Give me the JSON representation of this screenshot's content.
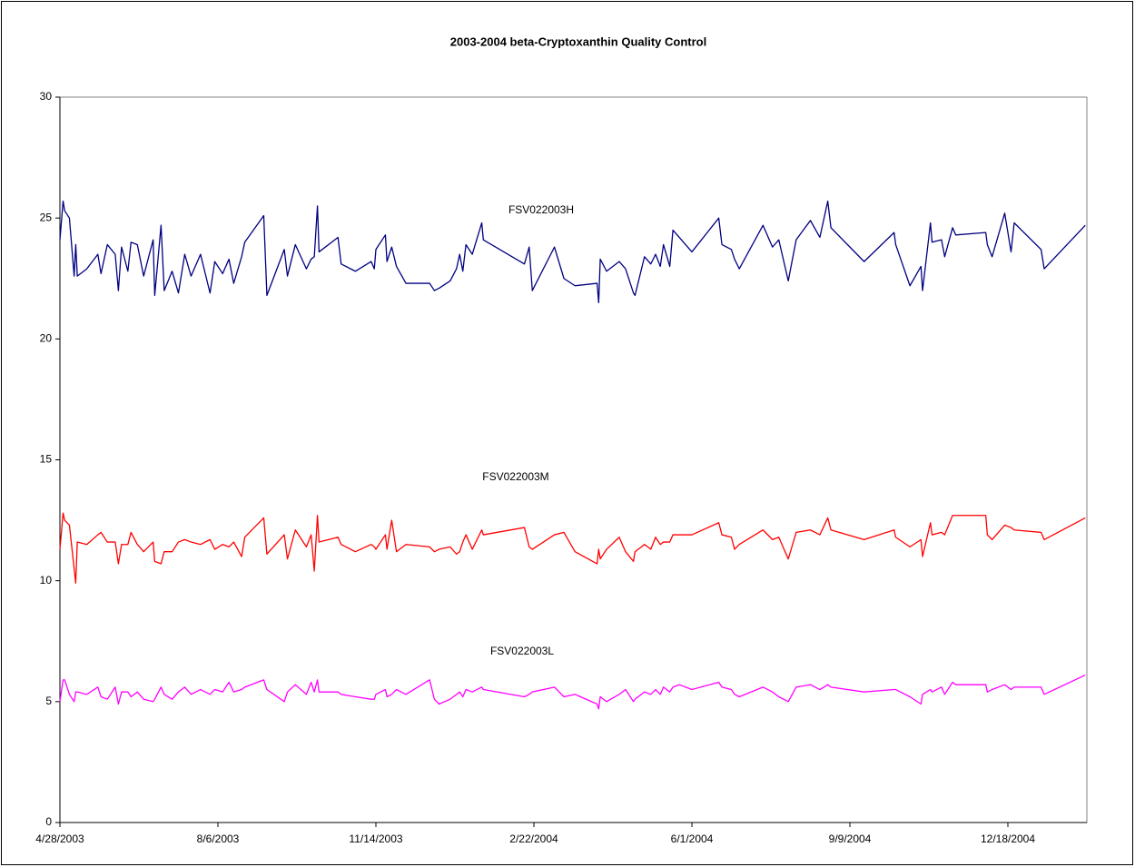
{
  "chart_data": {
    "type": "line",
    "title": "2003-2004 beta-Cryptoxanthin Quality Control",
    "x": [
      "4/28/2003",
      "4/30/2003",
      "5/1/2003",
      "5/4/2003",
      "5/7/2003",
      "5/8/2003",
      "5/9/2003",
      "5/15/2003",
      "5/22/2003",
      "5/24/2003",
      "5/28/2003",
      "6/2/2003",
      "6/4/2003",
      "6/6/2003",
      "6/10/2003",
      "6/12/2003",
      "6/16/2003",
      "6/20/2003",
      "6/26/2003",
      "6/27/2003",
      "7/1/2003",
      "7/3/2003",
      "7/8/2003",
      "7/12/2003",
      "7/16/2003",
      "7/20/2003",
      "7/26/2003",
      "8/1/2003",
      "8/4/2003",
      "8/9/2003",
      "8/13/2003",
      "8/16/2003",
      "8/21/2003",
      "8/23/2003",
      "9/4/2003",
      "9/6/2003",
      "9/17/2003",
      "9/19/2003",
      "9/24/2003",
      "10/1/2003",
      "10/4/2003",
      "10/6/2003",
      "10/8/2003",
      "10/9/2003",
      "10/21/2003",
      "10/23/2003",
      "11/1/2003",
      "11/11/2003",
      "11/13/2003",
      "11/14/2003",
      "11/20/2003",
      "11/21/2003",
      "11/24/2003",
      "11/27/2003",
      "12/3/2003",
      "12/18/2003",
      "12/21/2003",
      "12/24/2003",
      "12/31/2003",
      "1/4/2004",
      "1/6/2004",
      "1/8/2004",
      "1/10/2004",
      "1/14/2004",
      "1/20/2004",
      "1/21/2004",
      "2/16/2004",
      "2/19/2004",
      "2/21/2004",
      "3/6/2004",
      "3/12/2004",
      "3/19/2004",
      "4/2/2004",
      "4/3/2004",
      "4/4/2004",
      "4/8/2004",
      "4/16/2004",
      "4/20/2004",
      "4/25/2004",
      "4/26/2004",
      "5/2/2004",
      "5/6/2004",
      "5/9/2004",
      "5/12/2004",
      "5/14/2004",
      "5/18/2004",
      "5/20/2004",
      "5/24/2004",
      "6/1/2004",
      "6/18/2004",
      "6/20/2004",
      "6/26/2004",
      "6/28/2004",
      "7/1/2004",
      "7/16/2004",
      "7/22/2004",
      "7/26/2004",
      "8/1/2004",
      "8/6/2004",
      "8/15/2004",
      "8/21/2004",
      "8/26/2004",
      "8/28/2004",
      "9/18/2004",
      "10/7/2004",
      "10/8/2004",
      "10/17/2004",
      "10/24/2004",
      "10/25/2004",
      "10/30/2004",
      "10/31/2004",
      "11/6/2004",
      "11/8/2004",
      "11/13/2004",
      "11/15/2004",
      "12/4/2004",
      "12/5/2004",
      "12/8/2004",
      "12/16/2004",
      "12/20/2004",
      "12/22/2004",
      "1/8/2005",
      "1/10/2005",
      "2/5/2005"
    ],
    "series": [
      {
        "name": "FSV022003H",
        "color": "#000080",
        "values": [
          24.1,
          25.7,
          25.3,
          25.0,
          22.6,
          23.9,
          22.6,
          22.9,
          23.5,
          22.7,
          23.9,
          23.5,
          22.0,
          23.8,
          22.8,
          24.0,
          23.9,
          22.6,
          24.1,
          21.8,
          24.7,
          22.0,
          22.8,
          21.9,
          23.5,
          22.6,
          23.5,
          21.9,
          23.2,
          22.7,
          23.3,
          22.3,
          23.4,
          24.0,
          25.1,
          21.8,
          23.7,
          22.6,
          23.9,
          22.9,
          23.3,
          23.4,
          25.5,
          23.6,
          24.2,
          23.1,
          22.8,
          23.2,
          22.9,
          23.7,
          24.3,
          23.2,
          23.8,
          23.0,
          22.3,
          22.3,
          22.0,
          22.1,
          22.4,
          22.9,
          23.5,
          22.8,
          23.9,
          23.5,
          24.8,
          24.1,
          23.1,
          23.8,
          22.0,
          23.8,
          22.5,
          22.2,
          22.3,
          21.5,
          23.3,
          22.8,
          23.2,
          22.9,
          21.9,
          21.8,
          23.4,
          23.1,
          23.5,
          23.0,
          23.9,
          23.0,
          24.5,
          24.2,
          23.6,
          25.0,
          23.9,
          23.7,
          23.3,
          22.9,
          24.7,
          23.8,
          24.1,
          22.4,
          24.1,
          24.9,
          24.2,
          25.7,
          24.6,
          23.2,
          24.4,
          23.9,
          22.2,
          23.0,
          22.0,
          24.8,
          24.0,
          24.1,
          23.4,
          24.6,
          24.3,
          24.4,
          23.9,
          23.4,
          25.2,
          23.6,
          24.8,
          23.7,
          22.9,
          24.7
        ]
      },
      {
        "name": "FSV022003M",
        "color": "#ff0000",
        "values": [
          11.3,
          12.8,
          12.5,
          12.3,
          10.5,
          9.9,
          11.6,
          11.5,
          11.9,
          12.0,
          11.6,
          11.6,
          10.7,
          11.5,
          11.5,
          12.0,
          11.5,
          11.2,
          11.6,
          10.8,
          10.7,
          11.2,
          11.2,
          11.6,
          11.7,
          11.6,
          11.5,
          11.7,
          11.3,
          11.5,
          11.4,
          11.6,
          11.0,
          11.8,
          12.6,
          11.1,
          11.9,
          10.9,
          12.1,
          11.4,
          11.9,
          10.4,
          12.7,
          11.6,
          11.8,
          11.5,
          11.2,
          11.5,
          11.4,
          11.3,
          11.9,
          11.3,
          12.5,
          11.2,
          11.5,
          11.4,
          11.2,
          11.3,
          11.4,
          11.1,
          11.2,
          11.6,
          11.9,
          11.3,
          12.1,
          11.9,
          12.2,
          11.4,
          11.3,
          11.9,
          12.0,
          11.2,
          10.7,
          11.3,
          10.9,
          11.3,
          11.8,
          11.2,
          10.8,
          11.2,
          11.5,
          11.3,
          11.8,
          11.5,
          11.6,
          11.6,
          11.9,
          11.9,
          11.9,
          12.4,
          11.9,
          11.8,
          11.3,
          11.5,
          12.1,
          11.7,
          11.8,
          10.9,
          12.0,
          12.1,
          11.9,
          12.6,
          12.1,
          11.7,
          12.1,
          11.8,
          11.4,
          11.7,
          11.0,
          12.4,
          11.9,
          12.0,
          11.9,
          12.7,
          12.7,
          12.7,
          11.9,
          11.7,
          12.3,
          12.2,
          12.1,
          12.0,
          11.7,
          12.6
        ]
      },
      {
        "name": "FSV022003L",
        "color": "#ff00ff",
        "values": [
          5.0,
          5.9,
          5.9,
          5.3,
          5.0,
          5.4,
          5.4,
          5.3,
          5.6,
          5.2,
          5.1,
          5.6,
          4.9,
          5.4,
          5.4,
          5.2,
          5.4,
          5.1,
          5.0,
          5.1,
          5.6,
          5.3,
          5.1,
          5.4,
          5.6,
          5.3,
          5.5,
          5.3,
          5.5,
          5.4,
          5.8,
          5.4,
          5.5,
          5.6,
          5.9,
          5.5,
          5.0,
          5.4,
          5.7,
          5.3,
          5.8,
          5.4,
          5.9,
          5.4,
          5.4,
          5.3,
          5.2,
          5.1,
          5.1,
          5.3,
          5.5,
          5.2,
          5.3,
          5.5,
          5.3,
          5.9,
          5.1,
          4.9,
          5.1,
          5.3,
          5.4,
          5.2,
          5.5,
          5.4,
          5.6,
          5.5,
          5.2,
          5.3,
          5.4,
          5.6,
          5.2,
          5.3,
          4.9,
          4.7,
          5.2,
          5.0,
          5.3,
          5.5,
          5.0,
          5.1,
          5.4,
          5.3,
          5.5,
          5.3,
          5.6,
          5.4,
          5.6,
          5.7,
          5.5,
          5.8,
          5.6,
          5.5,
          5.3,
          5.2,
          5.6,
          5.4,
          5.2,
          5.0,
          5.6,
          5.7,
          5.5,
          5.7,
          5.6,
          5.4,
          5.5,
          5.5,
          5.2,
          4.9,
          5.3,
          5.5,
          5.4,
          5.6,
          5.3,
          5.8,
          5.7,
          5.7,
          5.4,
          5.5,
          5.7,
          5.5,
          5.6,
          5.6,
          5.3,
          6.1
        ]
      }
    ],
    "xlim": [
      "4/28/2003",
      "2/6/2005"
    ],
    "xticks": [
      "4/28/2003",
      "8/6/2003",
      "11/14/2003",
      "2/22/2004",
      "6/1/2004",
      "9/9/2004",
      "12/18/2004"
    ],
    "ylim": [
      0,
      30
    ],
    "yticks": [
      0,
      5,
      10,
      15,
      20,
      25,
      30
    ]
  }
}
